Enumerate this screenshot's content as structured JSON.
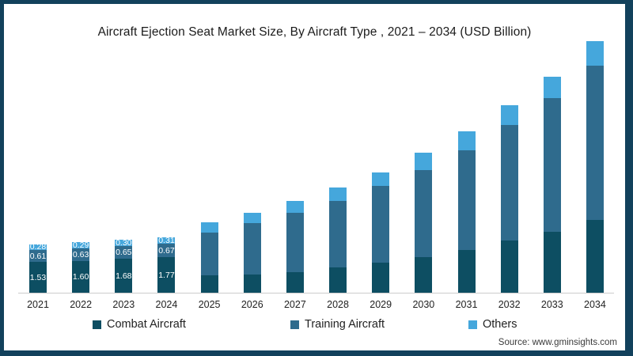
{
  "frame": {
    "border_color": "#12415c",
    "panel_background": "#ffffff"
  },
  "header": {
    "title": "Aircraft Ejection Seat Market Size, By Aircraft Type , 2021 – 2034 (USD Billion)"
  },
  "chart_data": {
    "type": "bar",
    "stacked": true,
    "title": "Aircraft Ejection Seat Market Size, By Aircraft Type , 2021 – 2034 (USD Billion)",
    "xlabel": "",
    "ylabel": "USD Billion",
    "ylim": [
      0,
      13
    ],
    "grid": false,
    "legend_position": "bottom",
    "axis_line_color": "#cccccc",
    "value_label_color": "#ffffff",
    "categories": [
      "2021",
      "2022",
      "2023",
      "2024",
      "2025",
      "2026",
      "2027",
      "2028",
      "2029",
      "2030",
      "2031",
      "2032",
      "2033",
      "2034"
    ],
    "labeled_categories": [
      "2021",
      "2022",
      "2023",
      "2024"
    ],
    "series": [
      {
        "name": "Combat Aircraft",
        "color": "#0d4e62",
        "values": [
          1.53,
          1.6,
          1.68,
          1.77,
          0.85,
          0.91,
          1.02,
          1.27,
          1.51,
          1.78,
          2.12,
          2.6,
          3.03,
          3.65
        ]
      },
      {
        "name": "Training Aircraft",
        "color": "#2f6b8d",
        "values": [
          0.61,
          0.63,
          0.65,
          0.67,
          2.15,
          2.58,
          2.99,
          3.32,
          3.82,
          4.35,
          5.01,
          5.77,
          6.68,
          7.68
        ]
      },
      {
        "name": "Others",
        "color": "#45a7dc",
        "values": [
          0.28,
          0.29,
          0.3,
          0.31,
          0.5,
          0.51,
          0.59,
          0.67,
          0.68,
          0.86,
          0.95,
          0.98,
          1.09,
          1.24
        ]
      }
    ]
  },
  "footer": {
    "source": "Source: www.gminsights.com"
  }
}
